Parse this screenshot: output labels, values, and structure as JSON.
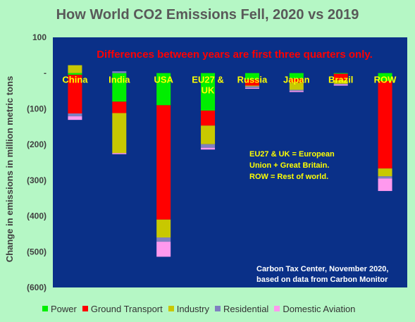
{
  "chart_data": {
    "type": "bar",
    "stacked": true,
    "title": "How World CO2 Emissions Fell, 2020 vs 2019",
    "subtitle": "Differences between years are first three quarters only.",
    "ylabel": "Change in emissions in million metric tons",
    "xlabel": "",
    "ylim": [
      -600,
      100
    ],
    "yticks": [
      {
        "value": 100,
        "label": "100"
      },
      {
        "value": 0,
        "label": "-"
      },
      {
        "value": -100,
        "label": "(100)"
      },
      {
        "value": -200,
        "label": "(200)"
      },
      {
        "value": -300,
        "label": "(300)"
      },
      {
        "value": -400,
        "label": "(400)"
      },
      {
        "value": -500,
        "label": "(500)"
      },
      {
        "value": -600,
        "label": "(600)"
      }
    ],
    "categories": [
      "China",
      "India",
      "USA",
      "EU27 & UK",
      "Russia",
      "Japan",
      "Brazil",
      "ROW"
    ],
    "series": [
      {
        "name": "Power",
        "color": "#00ee00",
        "values": [
          -5,
          -80,
          -90,
          -105,
          -18,
          -15,
          -2,
          -22
        ]
      },
      {
        "name": "Ground Transport",
        "color": "#ff0000",
        "values": [
          -108,
          -32,
          -320,
          -42,
          -17,
          -12,
          -18,
          -245
        ]
      },
      {
        "name": "Industry",
        "color": "#c8c800",
        "values": [
          22,
          -112,
          -50,
          -52,
          -2,
          -20,
          -10,
          -22
        ]
      },
      {
        "name": "Residential",
        "color": "#8080c0",
        "values": [
          -8,
          5,
          -12,
          -10,
          -5,
          -3,
          -2,
          -6
        ]
      },
      {
        "name": "Domestic Aviation",
        "color": "#ff99ee",
        "values": [
          -10,
          -3,
          -42,
          -5,
          -2,
          -3,
          -3,
          -35
        ]
      }
    ],
    "legend_position": "bottom",
    "grid": false,
    "annotations": {
      "note": [
        "EU27 & UK = European",
        "Union + Great Britain.",
        "ROW = Rest of world."
      ],
      "source": [
        "Carbon Tax Center, November 2020,",
        "based on data from Carbon Monitor"
      ]
    },
    "colors": {
      "page_background": "#b5f7c5",
      "plot_background": "#0a3088",
      "category_label": "#ffff00",
      "subtitle": "#ff0000",
      "title": "#595959"
    }
  }
}
